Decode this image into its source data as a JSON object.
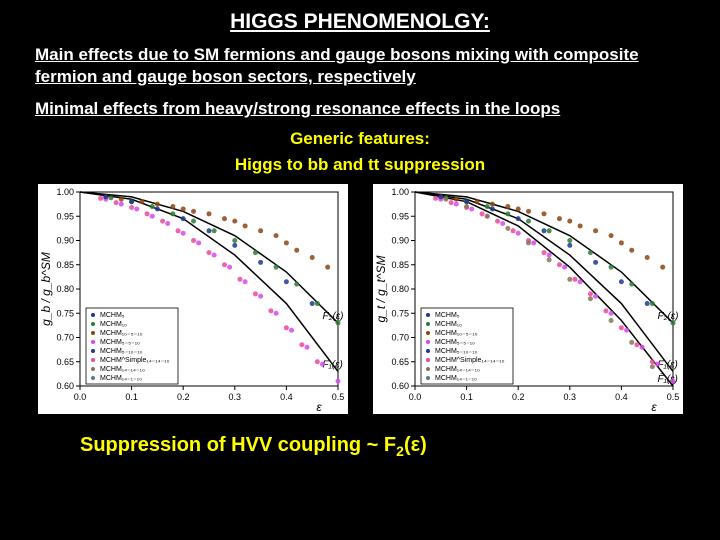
{
  "title": "HIGGS PHENOMENOLGY:",
  "text1": "Main effects due to  SM fermions and gauge bosons mixing with composite fermion  and gauge boson sectors, respectively",
  "text2": "Minimal effects from heavy/strong resonance effects in the loops",
  "generic": "Generic features:",
  "suppression": "Higgs  to bb and tt suppression",
  "bottom_prefix": "Suppression of HVV coupling ~ F",
  "bottom_sub": "2",
  "bottom_suffix": "(ε)",
  "chart_common": {
    "xlabel": "ε",
    "xlim": [
      0.0,
      0.5
    ],
    "xticks": [
      0.0,
      0.1,
      0.2,
      0.3,
      0.4,
      0.5
    ],
    "ylim": [
      0.6,
      1.0
    ],
    "yticks": [
      0.6,
      0.65,
      0.7,
      0.75,
      0.8,
      0.85,
      0.9,
      0.95,
      1.0
    ],
    "background_color": "#ffffff",
    "curve_color": "#000000",
    "marker_size": 2.5
  },
  "chart_left": {
    "ylabel": "g_b / g_b^SM",
    "curves": {
      "F2": [
        [
          0.0,
          1.0
        ],
        [
          0.1,
          0.99
        ],
        [
          0.2,
          0.96
        ],
        [
          0.3,
          0.91
        ],
        [
          0.4,
          0.835
        ],
        [
          0.5,
          0.73
        ]
      ],
      "F1": [
        [
          0.0,
          1.0
        ],
        [
          0.1,
          0.985
        ],
        [
          0.2,
          0.945
        ],
        [
          0.3,
          0.87
        ],
        [
          0.4,
          0.77
        ],
        [
          0.5,
          0.63
        ]
      ]
    },
    "curve_labels": {
      "F2": "F₂(ε)",
      "F1": "F₁(ε)"
    },
    "legend": [
      {
        "label": "MCHM₅",
        "color": "#1e3a8a",
        "marker": "dot"
      },
      {
        "label": "MCHM₁₀",
        "color": "#2e7d32",
        "marker": "plus"
      },
      {
        "label": "MCHM₁₀₋₅₋₁₀",
        "color": "#8b4513",
        "marker": "star"
      },
      {
        "label": "MCHM₅₋₅₋₁₀",
        "color": "#d946ef",
        "marker": "x"
      },
      {
        "label": "MCHM₅₋₁₀₋₁₀",
        "color": "#1e3a8a",
        "marker": "dot"
      },
      {
        "label": "MCHM^Simple₁₄₋₁₄₋₁₀",
        "color": "#ec4899",
        "marker": "star"
      },
      {
        "label": "MCHM₁₄₋₁₄₋₁₀",
        "color": "#8b7355",
        "marker": "diamond"
      },
      {
        "label": "MCHM₁₄₋₁₋₁₀",
        "color": "#6b7280",
        "marker": "triangle"
      }
    ],
    "scatter": [
      {
        "color": "#8b4513",
        "points": [
          [
            0.05,
            0.99
          ],
          [
            0.08,
            0.985
          ],
          [
            0.12,
            0.98
          ],
          [
            0.15,
            0.975
          ],
          [
            0.18,
            0.97
          ],
          [
            0.2,
            0.965
          ],
          [
            0.22,
            0.96
          ],
          [
            0.25,
            0.955
          ],
          [
            0.28,
            0.945
          ],
          [
            0.3,
            0.94
          ],
          [
            0.32,
            0.93
          ],
          [
            0.35,
            0.92
          ],
          [
            0.38,
            0.91
          ],
          [
            0.4,
            0.895
          ],
          [
            0.42,
            0.88
          ],
          [
            0.45,
            0.865
          ],
          [
            0.48,
            0.845
          ]
        ]
      },
      {
        "color": "#2e7d32",
        "points": [
          [
            0.06,
            0.988
          ],
          [
            0.1,
            0.98
          ],
          [
            0.14,
            0.97
          ],
          [
            0.18,
            0.955
          ],
          [
            0.22,
            0.94
          ],
          [
            0.26,
            0.92
          ],
          [
            0.3,
            0.9
          ],
          [
            0.34,
            0.875
          ],
          [
            0.38,
            0.845
          ],
          [
            0.42,
            0.81
          ],
          [
            0.46,
            0.77
          ],
          [
            0.5,
            0.73
          ]
        ]
      },
      {
        "color": "#d946ef",
        "points": [
          [
            0.05,
            0.985
          ],
          [
            0.08,
            0.975
          ],
          [
            0.11,
            0.965
          ],
          [
            0.14,
            0.95
          ],
          [
            0.17,
            0.935
          ],
          [
            0.2,
            0.915
          ],
          [
            0.23,
            0.895
          ],
          [
            0.26,
            0.87
          ],
          [
            0.29,
            0.845
          ],
          [
            0.32,
            0.815
          ],
          [
            0.35,
            0.785
          ],
          [
            0.38,
            0.75
          ],
          [
            0.41,
            0.715
          ],
          [
            0.44,
            0.68
          ],
          [
            0.47,
            0.645
          ],
          [
            0.5,
            0.61
          ]
        ]
      },
      {
        "color": "#ec4899",
        "points": [
          [
            0.04,
            0.987
          ],
          [
            0.07,
            0.978
          ],
          [
            0.1,
            0.968
          ],
          [
            0.13,
            0.955
          ],
          [
            0.16,
            0.94
          ],
          [
            0.19,
            0.92
          ],
          [
            0.22,
            0.9
          ],
          [
            0.25,
            0.875
          ],
          [
            0.28,
            0.85
          ],
          [
            0.31,
            0.82
          ],
          [
            0.34,
            0.79
          ],
          [
            0.37,
            0.755
          ],
          [
            0.4,
            0.72
          ],
          [
            0.43,
            0.685
          ],
          [
            0.46,
            0.65
          ]
        ]
      },
      {
        "color": "#1e3a8a",
        "points": [
          [
            0.05,
            0.99
          ],
          [
            0.1,
            0.98
          ],
          [
            0.15,
            0.965
          ],
          [
            0.2,
            0.945
          ],
          [
            0.25,
            0.92
          ],
          [
            0.3,
            0.89
          ],
          [
            0.35,
            0.855
          ],
          [
            0.4,
            0.815
          ],
          [
            0.45,
            0.77
          ]
        ]
      }
    ]
  },
  "chart_right": {
    "ylabel": "g_t / g_t^SM",
    "curves": {
      "F2": [
        [
          0.0,
          1.0
        ],
        [
          0.1,
          0.99
        ],
        [
          0.2,
          0.96
        ],
        [
          0.3,
          0.91
        ],
        [
          0.4,
          0.835
        ],
        [
          0.5,
          0.73
        ]
      ],
      "F1": [
        [
          0.0,
          1.0
        ],
        [
          0.1,
          0.985
        ],
        [
          0.2,
          0.945
        ],
        [
          0.3,
          0.87
        ],
        [
          0.4,
          0.77
        ],
        [
          0.5,
          0.63
        ]
      ],
      "F1bar": [
        [
          0.0,
          1.0
        ],
        [
          0.1,
          0.98
        ],
        [
          0.2,
          0.93
        ],
        [
          0.3,
          0.845
        ],
        [
          0.4,
          0.735
        ],
        [
          0.5,
          0.6
        ]
      ]
    },
    "curve_labels": {
      "F2": "F₂(ε)",
      "F1": "F₁(ε)",
      "F1bar": "F̄₁(ε)"
    },
    "legend": [
      {
        "label": "MCHM₅",
        "color": "#1e3a8a",
        "marker": "dot"
      },
      {
        "label": "MCHM₁₀",
        "color": "#2e7d32",
        "marker": "plus"
      },
      {
        "label": "MCHM₁₀₋₅₋₁₀",
        "color": "#8b4513",
        "marker": "star"
      },
      {
        "label": "MCHM₅₋₅₋₁₀",
        "color": "#d946ef",
        "marker": "x"
      },
      {
        "label": "MCHM₅₋₁₀₋₁₀",
        "color": "#1e3a8a",
        "marker": "dot"
      },
      {
        "label": "MCHM^Simple₁₄₋₁₄₋₁₀",
        "color": "#ec4899",
        "marker": "star"
      },
      {
        "label": "MCHM₁₄₋₁₄₋₁₀",
        "color": "#8b7355",
        "marker": "diamond"
      },
      {
        "label": "MCHM₁₄₋₁₋₁₀",
        "color": "#6b7280",
        "marker": "triangle"
      }
    ],
    "scatter": [
      {
        "color": "#8b4513",
        "points": [
          [
            0.05,
            0.99
          ],
          [
            0.08,
            0.985
          ],
          [
            0.12,
            0.98
          ],
          [
            0.15,
            0.975
          ],
          [
            0.18,
            0.97
          ],
          [
            0.2,
            0.965
          ],
          [
            0.22,
            0.96
          ],
          [
            0.25,
            0.955
          ],
          [
            0.28,
            0.945
          ],
          [
            0.3,
            0.94
          ],
          [
            0.32,
            0.93
          ],
          [
            0.35,
            0.92
          ],
          [
            0.38,
            0.91
          ],
          [
            0.4,
            0.895
          ],
          [
            0.42,
            0.88
          ],
          [
            0.45,
            0.865
          ],
          [
            0.48,
            0.845
          ]
        ]
      },
      {
        "color": "#2e7d32",
        "points": [
          [
            0.06,
            0.988
          ],
          [
            0.1,
            0.98
          ],
          [
            0.14,
            0.97
          ],
          [
            0.18,
            0.955
          ],
          [
            0.22,
            0.94
          ],
          [
            0.26,
            0.92
          ],
          [
            0.3,
            0.9
          ],
          [
            0.34,
            0.875
          ],
          [
            0.38,
            0.845
          ],
          [
            0.42,
            0.81
          ],
          [
            0.46,
            0.77
          ],
          [
            0.5,
            0.73
          ]
        ]
      },
      {
        "color": "#d946ef",
        "points": [
          [
            0.05,
            0.985
          ],
          [
            0.08,
            0.975
          ],
          [
            0.11,
            0.965
          ],
          [
            0.14,
            0.95
          ],
          [
            0.17,
            0.935
          ],
          [
            0.2,
            0.915
          ],
          [
            0.23,
            0.895
          ],
          [
            0.26,
            0.87
          ],
          [
            0.29,
            0.845
          ],
          [
            0.32,
            0.815
          ],
          [
            0.35,
            0.785
          ],
          [
            0.38,
            0.75
          ],
          [
            0.41,
            0.715
          ],
          [
            0.44,
            0.68
          ],
          [
            0.47,
            0.645
          ],
          [
            0.5,
            0.61
          ]
        ]
      },
      {
        "color": "#ec4899",
        "points": [
          [
            0.04,
            0.987
          ],
          [
            0.07,
            0.978
          ],
          [
            0.1,
            0.968
          ],
          [
            0.13,
            0.955
          ],
          [
            0.16,
            0.94
          ],
          [
            0.19,
            0.92
          ],
          [
            0.22,
            0.9
          ],
          [
            0.25,
            0.875
          ],
          [
            0.28,
            0.85
          ],
          [
            0.31,
            0.82
          ],
          [
            0.34,
            0.79
          ],
          [
            0.37,
            0.755
          ],
          [
            0.4,
            0.72
          ],
          [
            0.43,
            0.685
          ],
          [
            0.46,
            0.65
          ]
        ]
      },
      {
        "color": "#1e3a8a",
        "points": [
          [
            0.05,
            0.99
          ],
          [
            0.1,
            0.98
          ],
          [
            0.15,
            0.965
          ],
          [
            0.2,
            0.945
          ],
          [
            0.25,
            0.92
          ],
          [
            0.3,
            0.89
          ],
          [
            0.35,
            0.855
          ],
          [
            0.4,
            0.815
          ],
          [
            0.45,
            0.77
          ]
        ]
      },
      {
        "color": "#8b7355",
        "points": [
          [
            0.06,
            0.985
          ],
          [
            0.1,
            0.97
          ],
          [
            0.14,
            0.95
          ],
          [
            0.18,
            0.925
          ],
          [
            0.22,
            0.895
          ],
          [
            0.26,
            0.86
          ],
          [
            0.3,
            0.82
          ],
          [
            0.34,
            0.78
          ],
          [
            0.38,
            0.735
          ],
          [
            0.42,
            0.69
          ],
          [
            0.46,
            0.64
          ]
        ]
      }
    ]
  }
}
